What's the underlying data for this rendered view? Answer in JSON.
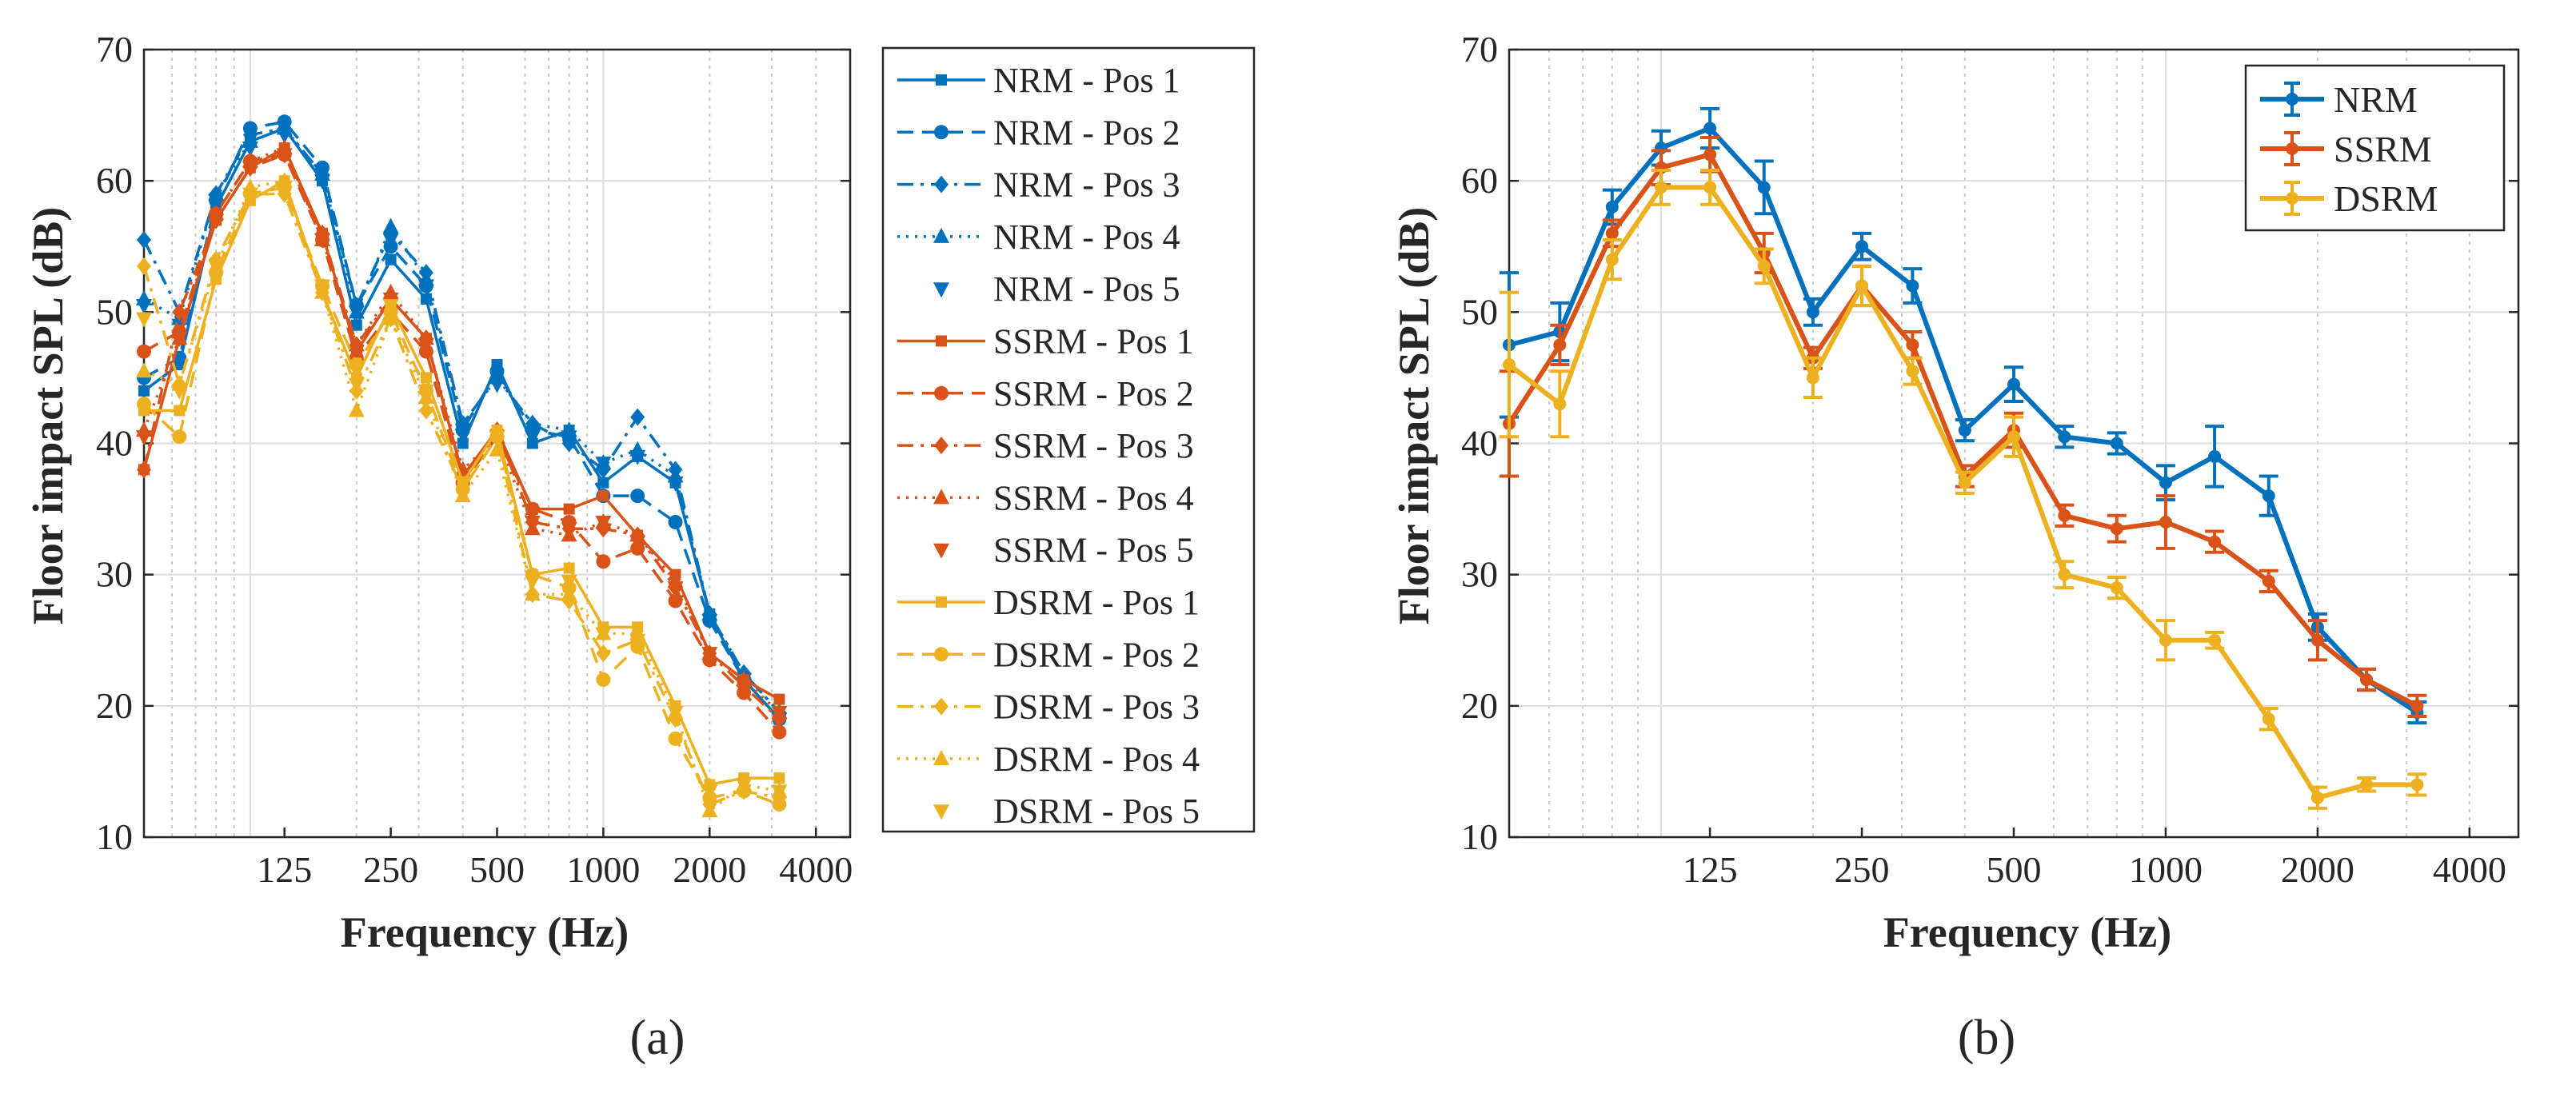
{
  "colors": {
    "NRM": "#0072BD",
    "SSRM": "#D95319",
    "DSRM": "#EDB120"
  },
  "chart_data": [
    {
      "id": "a",
      "type": "line",
      "sublabel": "(a)",
      "xlabel": "Frequency (Hz)",
      "ylabel": "Floor impact SPL (dB)",
      "xscale": "log",
      "xlim": [
        50,
        5000
      ],
      "ylim": [
        10,
        70
      ],
      "yticks": [
        10,
        20,
        30,
        40,
        50,
        60,
        70
      ],
      "xtick_values": [
        125,
        250,
        500,
        1000,
        2000,
        4000
      ],
      "xtick_labels": [
        "125",
        "250",
        "500",
        "1000",
        "2000",
        "4000"
      ],
      "grid": true,
      "legend_position": "outside-right",
      "x": [
        50,
        63,
        80,
        100,
        125,
        160,
        200,
        250,
        315,
        400,
        500,
        630,
        800,
        1000,
        1250,
        1600,
        2000,
        2500,
        3150
      ],
      "series": [
        {
          "name": "NRM - Pos 1",
          "group": "NRM",
          "style": "solid",
          "marker": "square",
          "values": [
            44,
            46,
            58,
            63,
            64,
            60,
            49,
            54,
            51,
            40,
            46,
            40,
            41,
            37,
            39,
            37,
            27,
            22,
            19
          ]
        },
        {
          "name": "NRM - Pos 2",
          "group": "NRM",
          "style": "dashed",
          "marker": "circle",
          "values": [
            45,
            46.5,
            58.5,
            64,
            64.5,
            61,
            50.5,
            55,
            52,
            41,
            45.5,
            41,
            40.5,
            36,
            36,
            34,
            26.5,
            22,
            19
          ]
        },
        {
          "name": "NRM - Pos 3",
          "group": "NRM",
          "style": "dashdot",
          "marker": "diamond",
          "values": [
            55.5,
            50,
            59,
            63.5,
            64,
            60.5,
            50.5,
            56,
            53,
            41.5,
            45,
            41.5,
            40,
            38,
            42,
            38,
            27,
            22.5,
            19.5
          ]
        },
        {
          "name": "NRM - Pos 4",
          "group": "NRM",
          "style": "dotted",
          "marker": "triangle-up",
          "values": [
            51,
            49.5,
            59,
            63,
            64,
            60.5,
            50,
            56.5,
            52.5,
            41.5,
            45,
            41.5,
            41,
            38.5,
            39.5,
            37.5,
            27,
            22.5,
            19.5
          ]
        },
        {
          "name": "NRM - Pos 5",
          "group": "NRM",
          "style": "none",
          "marker": "triangle-down",
          "values": [
            50.5,
            49,
            58.5,
            62.5,
            63.5,
            60,
            50,
            55.5,
            52,
            41,
            44.5,
            40.5,
            40.5,
            38.5,
            39,
            37,
            26.5,
            22,
            19
          ]
        },
        {
          "name": "SSRM - Pos 1",
          "group": "SSRM",
          "style": "solid",
          "marker": "square",
          "values": [
            38,
            48,
            57,
            61,
            62.5,
            56,
            47,
            51,
            48,
            37.5,
            41,
            35,
            35,
            36,
            33,
            30,
            24,
            22,
            20.5
          ]
        },
        {
          "name": "SSRM - Pos 2",
          "group": "SSRM",
          "style": "dashed",
          "marker": "circle",
          "values": [
            47,
            48.5,
            57.5,
            61.5,
            62,
            55.5,
            46.5,
            50,
            47,
            37,
            40.5,
            35,
            34,
            31,
            32,
            28,
            23.5,
            21,
            18
          ]
        },
        {
          "name": "SSRM - Pos 3",
          "group": "SSRM",
          "style": "dashdot",
          "marker": "diamond",
          "values": [
            38,
            50,
            57,
            61,
            62,
            56,
            47.5,
            51,
            48,
            37.5,
            41,
            34,
            33.5,
            33.5,
            33,
            29,
            24,
            21.5,
            19
          ]
        },
        {
          "name": "SSRM - Pos 4",
          "group": "SSRM",
          "style": "dotted",
          "marker": "triangle-up",
          "values": [
            41,
            48,
            57.5,
            61.5,
            62.5,
            55.5,
            47.5,
            51.5,
            48,
            38,
            40.5,
            33.5,
            33,
            34,
            33,
            29.5,
            24,
            22,
            19.5
          ]
        },
        {
          "name": "SSRM - Pos 5",
          "group": "SSRM",
          "style": "none",
          "marker": "triangle-down",
          "values": [
            40.5,
            48,
            57,
            61,
            62,
            55.5,
            47,
            51,
            47.5,
            37,
            40.5,
            34,
            33.5,
            34,
            32.5,
            29,
            24,
            21.5,
            19.5
          ]
        },
        {
          "name": "DSRM - Pos 1",
          "group": "DSRM",
          "style": "solid",
          "marker": "square",
          "values": [
            42.5,
            42.5,
            52.5,
            58.5,
            60,
            51.5,
            45,
            50.5,
            45,
            37,
            41,
            30,
            30.5,
            26,
            26,
            20,
            14,
            14.5,
            14.5
          ]
        },
        {
          "name": "DSRM - Pos 2",
          "group": "DSRM",
          "style": "dashed",
          "marker": "circle",
          "values": [
            43,
            40.5,
            53,
            59,
            59.5,
            52,
            46,
            50,
            44,
            36.5,
            40.5,
            30,
            29,
            22,
            24.5,
            17.5,
            13,
            13.5,
            12.5
          ]
        },
        {
          "name": "DSRM - Pos 3",
          "group": "DSRM",
          "style": "dashdot",
          "marker": "diamond",
          "values": [
            53.5,
            44.5,
            54,
            59,
            59,
            51.5,
            44,
            49.5,
            42.5,
            36.5,
            40.5,
            28.5,
            28,
            24,
            25,
            19,
            12.5,
            13.5,
            13
          ]
        },
        {
          "name": "DSRM - Pos 4",
          "group": "DSRM",
          "style": "dotted",
          "marker": "triangle-up",
          "values": [
            45.5,
            44.5,
            53.5,
            59.5,
            60,
            51.5,
            42.5,
            49.5,
            43.5,
            36,
            39.5,
            28.5,
            28.5,
            25.5,
            25.5,
            19.5,
            12,
            14,
            13.5
          ]
        },
        {
          "name": "DSRM - Pos 5",
          "group": "DSRM",
          "style": "none",
          "marker": "triangle-down",
          "values": [
            49.5,
            44,
            53.5,
            59,
            59.5,
            52,
            44.5,
            50.5,
            44,
            37,
            40.5,
            29.5,
            29.5,
            25.5,
            25,
            19.5,
            13.5,
            14,
            13.5
          ]
        }
      ]
    },
    {
      "id": "b",
      "type": "line",
      "sublabel": "(b)",
      "xlabel": "Frequency (Hz)",
      "ylabel": "Floor impact SPL (dB)",
      "xscale": "log",
      "xlim": [
        50,
        5000
      ],
      "ylim": [
        10,
        70
      ],
      "yticks": [
        10,
        20,
        30,
        40,
        50,
        60,
        70
      ],
      "xtick_values": [
        125,
        250,
        500,
        1000,
        2000,
        4000
      ],
      "xtick_labels": [
        "125",
        "250",
        "500",
        "1000",
        "2000",
        "4000"
      ],
      "grid": true,
      "legend_position": "top-right",
      "x": [
        50,
        63,
        80,
        100,
        125,
        160,
        200,
        250,
        315,
        400,
        500,
        630,
        800,
        1000,
        1250,
        1600,
        2000,
        2500,
        3150
      ],
      "series": [
        {
          "name": "NRM",
          "group": "NRM",
          "values": [
            47.5,
            48.5,
            58,
            62.5,
            64,
            59.5,
            50,
            55,
            52,
            41,
            44.5,
            40.5,
            40,
            37,
            39,
            36,
            26,
            22,
            19.5
          ],
          "errors": [
            5.5,
            2.2,
            1.3,
            1.3,
            1.5,
            2,
            1,
            1,
            1.3,
            0.8,
            1.3,
            0.8,
            0.8,
            1.3,
            2.3,
            1.5,
            1,
            0.8,
            0.8
          ]
        },
        {
          "name": "SSRM",
          "group": "SSRM",
          "values": [
            41.5,
            47.5,
            56,
            61,
            62,
            54.5,
            46.5,
            52,
            47.5,
            37.5,
            41,
            34.5,
            33.5,
            34,
            32.5,
            29.5,
            25,
            22,
            20
          ],
          "errors": [
            4,
            1.5,
            1,
            1.3,
            1.3,
            1.5,
            0.8,
            1.5,
            1,
            0.8,
            1.3,
            0.8,
            1,
            2,
            0.8,
            0.8,
            1.5,
            0.8,
            0.8
          ]
        },
        {
          "name": "DSRM",
          "group": "DSRM",
          "values": [
            46,
            43,
            54,
            59.5,
            59.5,
            53.5,
            45,
            52,
            45.5,
            37,
            40.5,
            30,
            29,
            25,
            25,
            19,
            13,
            14,
            14
          ],
          "errors": [
            5.5,
            2.5,
            1.5,
            1.3,
            1.3,
            1.3,
            1.5,
            1.5,
            1,
            0.8,
            1.5,
            1,
            0.8,
            1.5,
            0.6,
            0.8,
            0.8,
            0.5,
            0.8
          ]
        }
      ]
    }
  ]
}
